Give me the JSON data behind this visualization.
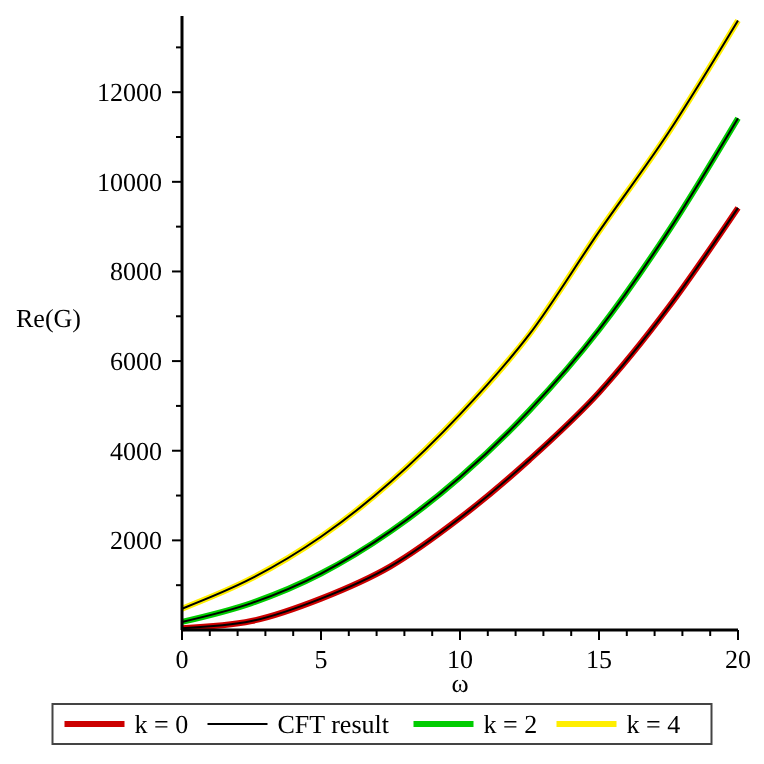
{
  "chart_data": {
    "type": "line",
    "xlabel": "ω",
    "ylabel": "Re(G)",
    "x": [
      0,
      2.5,
      5,
      7.5,
      10,
      12.5,
      15,
      17.5,
      20
    ],
    "series": [
      {
        "name": "k = 0",
        "color": "#cc0000",
        "values": [
          40,
          200,
          700,
          1420,
          2500,
          3800,
          5300,
          7200,
          9420
        ]
      },
      {
        "name": "CFT result",
        "color": "#000000",
        "values": [
          40,
          200,
          700,
          1420,
          2500,
          3800,
          5300,
          7200,
          9420
        ]
      },
      {
        "name": "k = 2",
        "color": "#00cc00",
        "values": [
          180,
          600,
          1260,
          2200,
          3410,
          4900,
          6700,
          8900,
          11420
        ]
      },
      {
        "color": "#000000",
        "values": [
          180,
          600,
          1260,
          2200,
          3410,
          4900,
          6700,
          8900,
          11420
        ]
      },
      {
        "name": "k = 4",
        "color": "#ffee00",
        "values": [
          475,
          1150,
          2080,
          3300,
          4810,
          6600,
          8890,
          11100,
          13600
        ]
      },
      {
        "color": "#000000",
        "values": [
          475,
          1150,
          2080,
          3300,
          4810,
          6600,
          8890,
          11100,
          13600
        ]
      }
    ],
    "xlim": [
      0,
      20
    ],
    "ylim": [
      0,
      13700
    ],
    "xticks": [
      0,
      {
        "value": 1,
        "label": null
      },
      {
        "value": 2,
        "label": null
      },
      {
        "value": 3,
        "label": null
      },
      {
        "value": 4,
        "label": null
      },
      5,
      {
        "value": 6,
        "label": null
      },
      {
        "value": 7,
        "label": null
      },
      {
        "value": 8,
        "label": null
      },
      {
        "value": 9,
        "label": null
      },
      10,
      {
        "value": 11,
        "label": null
      },
      {
        "value": 12,
        "label": null
      },
      {
        "value": 13,
        "label": null
      },
      {
        "value": 14,
        "label": null
      },
      15,
      {
        "value": 16,
        "label": null
      },
      {
        "value": 17,
        "label": null
      },
      {
        "value": 18,
        "label": null
      },
      {
        "value": 19,
        "label": null
      },
      20
    ],
    "yticks": [
      {
        "value": 1000,
        "label": null
      },
      2000,
      {
        "value": 3000,
        "label": null
      },
      4000,
      {
        "value": 5000,
        "label": null
      },
      6000,
      {
        "value": 7000,
        "label": null
      },
      8000,
      {
        "value": 9000,
        "label": null
      },
      10000,
      {
        "value": 11000,
        "label": null
      },
      12000,
      {
        "value": 13000,
        "label": null
      }
    ],
    "legend": "bottom",
    "grid": false,
    "marker": "none",
    "line_style": "solid"
  }
}
